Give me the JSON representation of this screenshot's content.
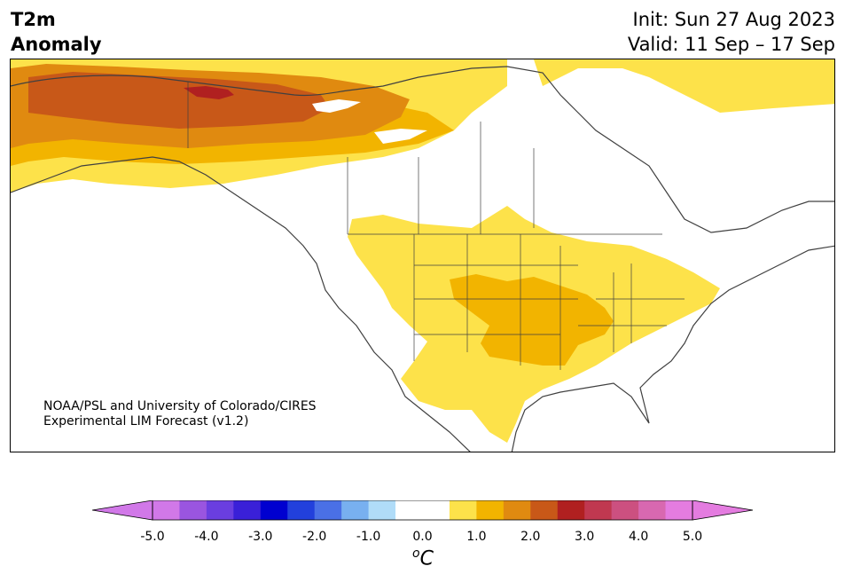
{
  "header": {
    "variable": "T2m",
    "subtitle": "Anomaly",
    "init": "Init: Sun 27 Aug 2023",
    "valid": "Valid: 11 Sep – 17 Sep"
  },
  "credit": {
    "line1": "NOAA/PSL and University of Colorado/CIRES",
    "line2": "Experimental LIM Forecast (v1.2)"
  },
  "colorbar": {
    "ticks": [
      "-5.0",
      "-4.0",
      "-3.0",
      "-2.0",
      "-1.0",
      "0.0",
      "1.0",
      "2.0",
      "3.0",
      "4.0",
      "5.0"
    ],
    "unit_base": "C",
    "unit_sup": "o",
    "colors": [
      "#d178e8",
      "#9a55e0",
      "#6a3ee0",
      "#3a20d8",
      "#0000d0",
      "#2240dc",
      "#4a70e6",
      "#78b0f0",
      "#b0dcf8",
      "#ffffff",
      "#ffffff",
      "#fde24a",
      "#f2b400",
      "#e08a10",
      "#c85818",
      "#b02020",
      "#c03850",
      "#cc5080",
      "#d868b0",
      "#e47ce0"
    ],
    "under_color": "#d178e8",
    "over_color": "#e47ce0"
  },
  "map": {
    "land_outline_color": "#404040",
    "background": "#ffffff"
  }
}
